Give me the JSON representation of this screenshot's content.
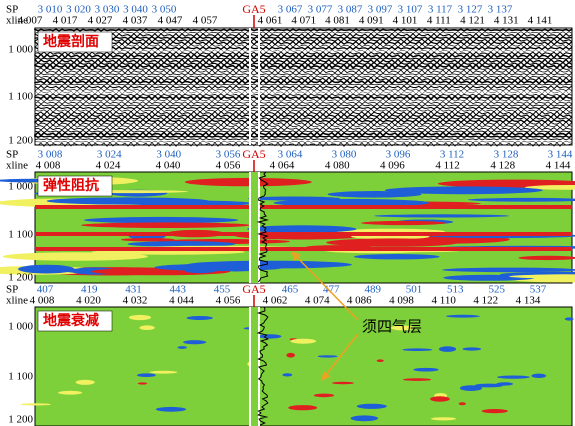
{
  "panels": [
    {
      "label": "地震剖面",
      "sp_title": "SP",
      "xline_title": "xline",
      "well": "GA5",
      "sp_left": [
        "3 010",
        "3 020",
        "3 030",
        "3 040",
        "3 050"
      ],
      "sp_right": [
        "3 067",
        "3 077",
        "3 087",
        "3 097",
        "3 107",
        "3 117",
        "3 127",
        "3 137"
      ],
      "xline_left": [
        "4 007",
        "4 017",
        "4 027",
        "4 037",
        "4 047",
        "4 057"
      ],
      "xline_right": [
        "4 061",
        "4 071",
        "4 081",
        "4 091",
        "4 101",
        "4 111",
        "4 121",
        "4 131",
        "4 141"
      ],
      "depths": [
        "1 000",
        "1 100",
        "1 200"
      ]
    },
    {
      "label": "弹性阻抗",
      "sp_title": "SP",
      "xline_title": "xline",
      "well": "GA5",
      "sp_left": [
        "3 008",
        "3 024",
        "3 040",
        "3 056"
      ],
      "sp_right": [
        "3 064",
        "3 080",
        "3 096",
        "3 112",
        "3 128",
        "3 144"
      ],
      "xline_left": [
        "4 008",
        "4 024",
        "4 040",
        "4 056"
      ],
      "xline_right": [
        "4 064",
        "4 080",
        "4 096",
        "4 112",
        "4 128",
        "4 144"
      ],
      "depths": [
        "1 000",
        "1 100",
        "1 200"
      ]
    },
    {
      "label": "地震衰减",
      "sp_title": "SP",
      "xline_title": "xline",
      "well": "GA5",
      "sp_left": [
        "407",
        "419",
        "431",
        "443",
        "455"
      ],
      "sp_right": [
        "465",
        "477",
        "489",
        "501",
        "513",
        "525",
        "537"
      ],
      "xline_left": [
        "4 008",
        "4 020",
        "4 032",
        "4 044",
        "4 056"
      ],
      "xline_right": [
        "4 062",
        "4 074",
        "4 086",
        "4 098",
        "4 110",
        "4 122",
        "4 134"
      ],
      "depths": [
        "1 000",
        "1 100",
        "1 200"
      ]
    }
  ],
  "annotation": "须四气层"
}
